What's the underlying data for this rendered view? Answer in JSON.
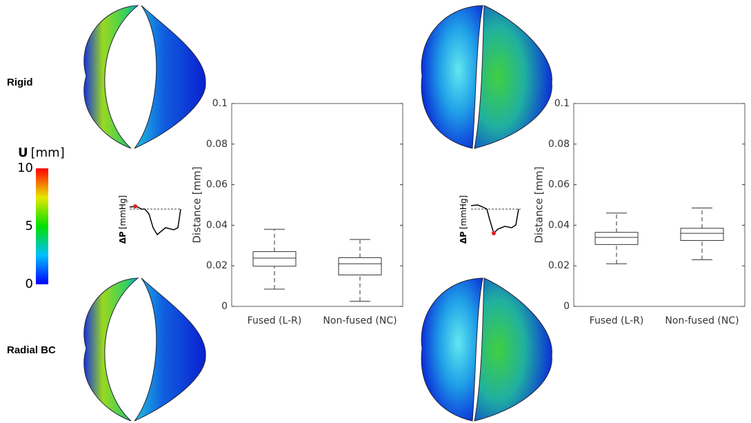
{
  "labels": {
    "rigid": "Rigid",
    "radial": "Radial BC",
    "pressure_symbol": "ΔP",
    "pressure_unit": "[mmHg]"
  },
  "colorbar": {
    "symbol": "U",
    "unit": "[mm]",
    "lim": [
      0,
      10
    ],
    "ticks": [
      0,
      5,
      10
    ]
  },
  "chart_data": [
    {
      "type": "box",
      "ylabel": "Distance [mm]",
      "categories": [
        "Fused (L-R)",
        "Non-fused (NC)"
      ],
      "boxes": [
        {
          "whislo": 0.0085,
          "q1": 0.0198,
          "med": 0.0238,
          "q3": 0.027,
          "whishi": 0.038
        },
        {
          "whislo": 0.0025,
          "q1": 0.0155,
          "med": 0.021,
          "q3": 0.024,
          "whishi": 0.033
        }
      ],
      "ylim": [
        0,
        0.1
      ],
      "yticks": [
        0,
        0.02,
        0.04,
        0.06,
        0.08,
        0.1
      ]
    },
    {
      "type": "box",
      "ylabel": "Distance [mm]",
      "categories": [
        "Fused (L-R)",
        "Non-fused (NC)"
      ],
      "boxes": [
        {
          "whislo": 0.021,
          "q1": 0.0305,
          "med": 0.034,
          "q3": 0.0365,
          "whishi": 0.046
        },
        {
          "whislo": 0.023,
          "q1": 0.0325,
          "med": 0.036,
          "q3": 0.0385,
          "whishi": 0.0485
        }
      ],
      "ylim": [
        0,
        0.1
      ],
      "yticks": [
        0,
        0.02,
        0.04,
        0.06,
        0.08,
        0.1
      ]
    }
  ]
}
